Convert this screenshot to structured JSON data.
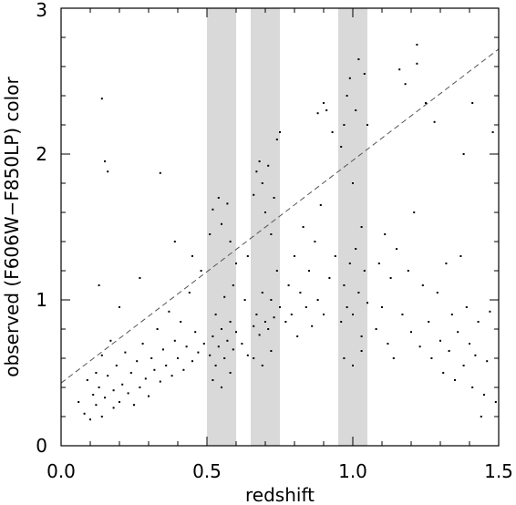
{
  "chart_data": {
    "type": "scatter",
    "xlabel": "redshift",
    "ylabel": "observed (F606W−F850LP) color",
    "xlim": [
      0.0,
      1.5
    ],
    "ylim": [
      0.0,
      3.0
    ],
    "x_ticks": [
      "0.0",
      "0.5",
      "1.0",
      "1.5"
    ],
    "y_ticks": [
      "0",
      "1",
      "2",
      "3"
    ],
    "grid": false,
    "shaded_bands": [
      {
        "x0": 0.5,
        "x1": 0.6,
        "color": "#d9d9d9"
      },
      {
        "x0": 0.65,
        "x1": 0.75,
        "color": "#d9d9d9"
      },
      {
        "x0": 0.95,
        "x1": 1.05,
        "color": "#d9d9d9"
      }
    ],
    "reference_line": {
      "style": "dashed",
      "x": [
        0.0,
        1.5
      ],
      "y": [
        0.43,
        2.72
      ]
    },
    "points": [
      [
        0.06,
        0.3
      ],
      [
        0.08,
        0.22
      ],
      [
        0.09,
        0.45
      ],
      [
        0.1,
        0.18
      ],
      [
        0.11,
        0.35
      ],
      [
        0.12,
        0.5
      ],
      [
        0.12,
        0.28
      ],
      [
        0.13,
        0.4
      ],
      [
        0.14,
        0.62
      ],
      [
        0.14,
        0.2
      ],
      [
        0.15,
        0.33
      ],
      [
        0.16,
        0.48
      ],
      [
        0.17,
        0.72
      ],
      [
        0.18,
        0.26
      ],
      [
        0.18,
        0.38
      ],
      [
        0.19,
        0.55
      ],
      [
        0.2,
        0.3
      ],
      [
        0.21,
        0.42
      ],
      [
        0.22,
        0.64
      ],
      [
        0.23,
        0.36
      ],
      [
        0.24,
        0.5
      ],
      [
        0.25,
        0.28
      ],
      [
        0.26,
        0.58
      ],
      [
        0.27,
        0.4
      ],
      [
        0.28,
        0.7
      ],
      [
        0.29,
        0.46
      ],
      [
        0.3,
        0.34
      ],
      [
        0.31,
        0.6
      ],
      [
        0.32,
        0.52
      ],
      [
        0.33,
        0.8
      ],
      [
        0.34,
        0.44
      ],
      [
        0.35,
        0.66
      ],
      [
        0.36,
        0.55
      ],
      [
        0.37,
        0.92
      ],
      [
        0.38,
        0.48
      ],
      [
        0.39,
        0.72
      ],
      [
        0.4,
        0.6
      ],
      [
        0.41,
        0.85
      ],
      [
        0.42,
        0.52
      ],
      [
        0.43,
        0.68
      ],
      [
        0.44,
        1.05
      ],
      [
        0.45,
        0.58
      ],
      [
        0.46,
        0.78
      ],
      [
        0.47,
        0.64
      ],
      [
        0.48,
        1.2
      ],
      [
        0.49,
        0.7
      ],
      [
        0.15,
        1.95
      ],
      [
        0.16,
        1.88
      ],
      [
        0.14,
        2.38
      ],
      [
        0.34,
        1.87
      ],
      [
        0.13,
        1.1
      ],
      [
        0.2,
        0.95
      ],
      [
        0.27,
        1.15
      ],
      [
        0.39,
        1.4
      ],
      [
        0.45,
        1.3
      ],
      [
        0.51,
        0.62
      ],
      [
        0.51,
        1.45
      ],
      [
        0.52,
        0.75
      ],
      [
        0.52,
        1.62
      ],
      [
        0.53,
        0.55
      ],
      [
        0.53,
        0.9
      ],
      [
        0.54,
        1.7
      ],
      [
        0.54,
        0.68
      ],
      [
        0.55,
        1.52
      ],
      [
        0.55,
        0.8
      ],
      [
        0.56,
        0.6
      ],
      [
        0.56,
        1.02
      ],
      [
        0.57,
        1.66
      ],
      [
        0.57,
        0.72
      ],
      [
        0.58,
        0.85
      ],
      [
        0.58,
        1.4
      ],
      [
        0.59,
        0.66
      ],
      [
        0.59,
        1.1
      ],
      [
        0.6,
        0.78
      ],
      [
        0.6,
        1.25
      ],
      [
        0.52,
        0.45
      ],
      [
        0.55,
        0.4
      ],
      [
        0.58,
        0.5
      ],
      [
        0.62,
        0.7
      ],
      [
        0.63,
        1.0
      ],
      [
        0.64,
        0.62
      ],
      [
        0.64,
        1.3
      ],
      [
        0.66,
        0.82
      ],
      [
        0.66,
        1.72
      ],
      [
        0.67,
        0.9
      ],
      [
        0.67,
        1.88
      ],
      [
        0.68,
        0.76
      ],
      [
        0.68,
        1.95
      ],
      [
        0.69,
        1.05
      ],
      [
        0.69,
        1.8
      ],
      [
        0.7,
        0.85
      ],
      [
        0.7,
        1.6
      ],
      [
        0.71,
        1.92
      ],
      [
        0.71,
        0.8
      ],
      [
        0.72,
        1.45
      ],
      [
        0.72,
        1.0
      ],
      [
        0.73,
        1.7
      ],
      [
        0.73,
        0.88
      ],
      [
        0.74,
        2.1
      ],
      [
        0.74,
        1.2
      ],
      [
        0.75,
        2.15
      ],
      [
        0.75,
        0.95
      ],
      [
        0.66,
        0.6
      ],
      [
        0.69,
        0.55
      ],
      [
        0.72,
        0.65
      ],
      [
        0.77,
        0.85
      ],
      [
        0.78,
        1.1
      ],
      [
        0.79,
        0.9
      ],
      [
        0.8,
        1.3
      ],
      [
        0.81,
        0.75
      ],
      [
        0.82,
        1.05
      ],
      [
        0.83,
        1.5
      ],
      [
        0.84,
        0.95
      ],
      [
        0.85,
        1.2
      ],
      [
        0.86,
        0.82
      ],
      [
        0.87,
        1.4
      ],
      [
        0.88,
        1.0
      ],
      [
        0.89,
        1.65
      ],
      [
        0.9,
        0.9
      ],
      [
        0.91,
        2.3
      ],
      [
        0.92,
        1.15
      ],
      [
        0.93,
        2.15
      ],
      [
        0.94,
        1.3
      ],
      [
        0.9,
        2.35
      ],
      [
        0.88,
        2.28
      ],
      [
        0.96,
        0.85
      ],
      [
        0.96,
        2.05
      ],
      [
        0.97,
        1.1
      ],
      [
        0.97,
        2.2
      ],
      [
        0.98,
        0.95
      ],
      [
        0.98,
        2.4
      ],
      [
        0.99,
        1.25
      ],
      [
        0.99,
        2.52
      ],
      [
        1.0,
        0.9
      ],
      [
        1.0,
        1.8
      ],
      [
        1.01,
        1.35
      ],
      [
        1.01,
        2.3
      ],
      [
        1.02,
        1.05
      ],
      [
        1.02,
        2.65
      ],
      [
        1.03,
        1.5
      ],
      [
        1.03,
        0.75
      ],
      [
        1.04,
        1.2
      ],
      [
        1.04,
        2.55
      ],
      [
        1.05,
        0.98
      ],
      [
        1.05,
        2.2
      ],
      [
        0.97,
        0.6
      ],
      [
        1.0,
        0.55
      ],
      [
        1.03,
        0.65
      ],
      [
        1.08,
        0.8
      ],
      [
        1.09,
        1.25
      ],
      [
        1.1,
        0.95
      ],
      [
        1.11,
        1.45
      ],
      [
        1.12,
        0.7
      ],
      [
        1.13,
        1.15
      ],
      [
        1.14,
        0.6
      ],
      [
        1.15,
        1.35
      ],
      [
        1.16,
        2.58
      ],
      [
        1.17,
        0.9
      ],
      [
        1.18,
        2.48
      ],
      [
        1.19,
        1.2
      ],
      [
        1.2,
        0.78
      ],
      [
        1.21,
        1.6
      ],
      [
        1.22,
        2.62
      ],
      [
        1.22,
        2.75
      ],
      [
        1.23,
        0.68
      ],
      [
        1.24,
        1.1
      ],
      [
        1.25,
        2.35
      ],
      [
        1.26,
        0.85
      ],
      [
        1.27,
        0.6
      ],
      [
        1.28,
        2.22
      ],
      [
        1.29,
        1.05
      ],
      [
        1.3,
        0.72
      ],
      [
        1.31,
        0.5
      ],
      [
        1.32,
        1.25
      ],
      [
        1.33,
        0.65
      ],
      [
        1.34,
        0.9
      ],
      [
        1.35,
        0.45
      ],
      [
        1.36,
        0.78
      ],
      [
        1.37,
        1.3
      ],
      [
        1.38,
        0.55
      ],
      [
        1.39,
        0.95
      ],
      [
        1.4,
        0.7
      ],
      [
        1.41,
        0.4
      ],
      [
        1.42,
        0.62
      ],
      [
        1.43,
        0.85
      ],
      [
        1.44,
        0.2
      ],
      [
        1.45,
        0.35
      ],
      [
        1.46,
        0.58
      ],
      [
        1.47,
        0.92
      ],
      [
        1.48,
        2.15
      ],
      [
        1.49,
        0.3
      ],
      [
        1.38,
        2.0
      ],
      [
        1.41,
        2.35
      ]
    ]
  }
}
